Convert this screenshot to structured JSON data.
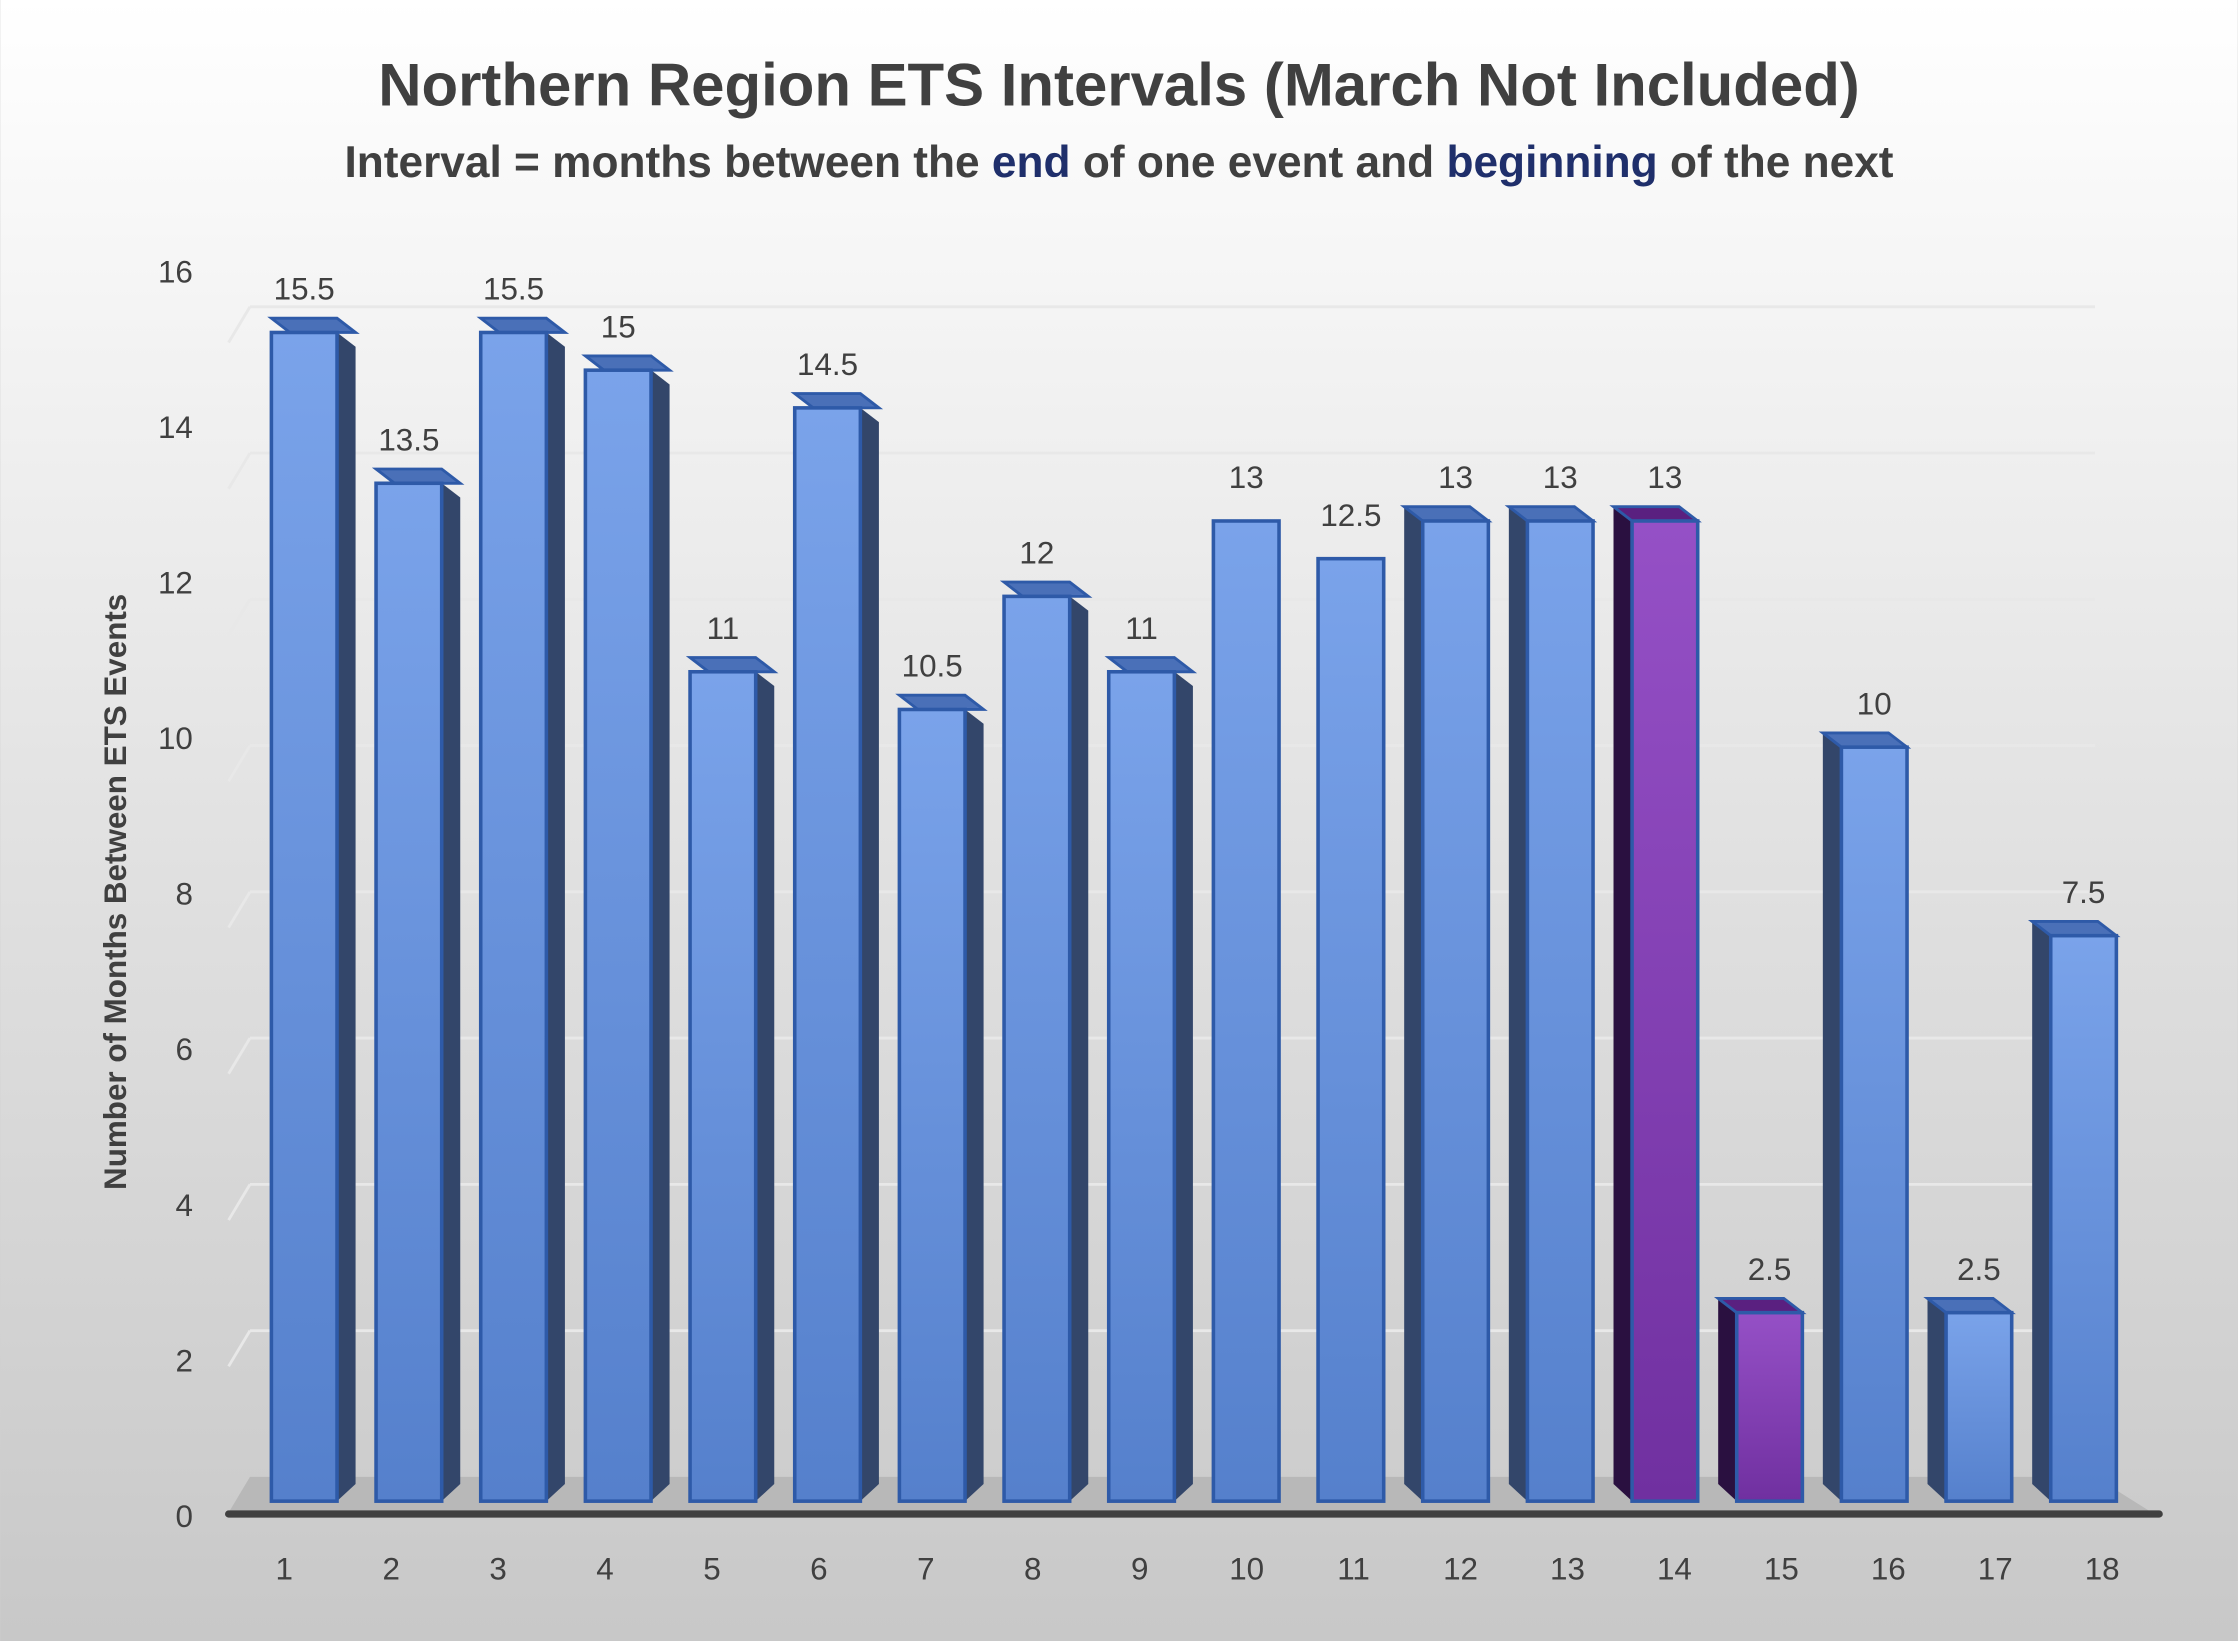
{
  "chart_data": {
    "type": "bar",
    "title": "Northern Region ETS Intervals (March Not Included)",
    "subtitle_parts": [
      {
        "text": "Interval = months between the ",
        "highlight": false
      },
      {
        "text": "end",
        "highlight": true
      },
      {
        "text": " of one event and ",
        "highlight": false
      },
      {
        "text": "beginning",
        "highlight": true
      },
      {
        "text": " of the next",
        "highlight": false
      }
    ],
    "xlabel": "",
    "ylabel": "Number of Months Between ETS Events",
    "ylim": [
      0,
      16
    ],
    "yticks": [
      "0",
      "2",
      "4",
      "6",
      "8",
      "10",
      "12",
      "14",
      "16"
    ],
    "categories": [
      "1",
      "2",
      "3",
      "4",
      "5",
      "6",
      "7",
      "8",
      "9",
      "10",
      "11",
      "12",
      "13",
      "14",
      "15",
      "16",
      "17",
      "18"
    ],
    "values": [
      15.5,
      13.5,
      15.5,
      15,
      11,
      14.5,
      10.5,
      12,
      11,
      13,
      12.5,
      13,
      13,
      13,
      2.5,
      10,
      2.5,
      7.5
    ],
    "data_labels": [
      "15.5",
      "13.5",
      "15.5",
      "15",
      "11",
      "14.5",
      "10.5",
      "12",
      "11",
      "13",
      "12.5",
      "13",
      "13",
      "13",
      "2.5",
      "10",
      "2.5",
      "7.5"
    ],
    "highlighted_categories": [
      "14",
      "15"
    ],
    "grid": true,
    "colors": {
      "bar": "#5b87d0",
      "highlight": "#7030a0",
      "emphasis_text": "#1f2f6b",
      "text": "#404040"
    }
  }
}
